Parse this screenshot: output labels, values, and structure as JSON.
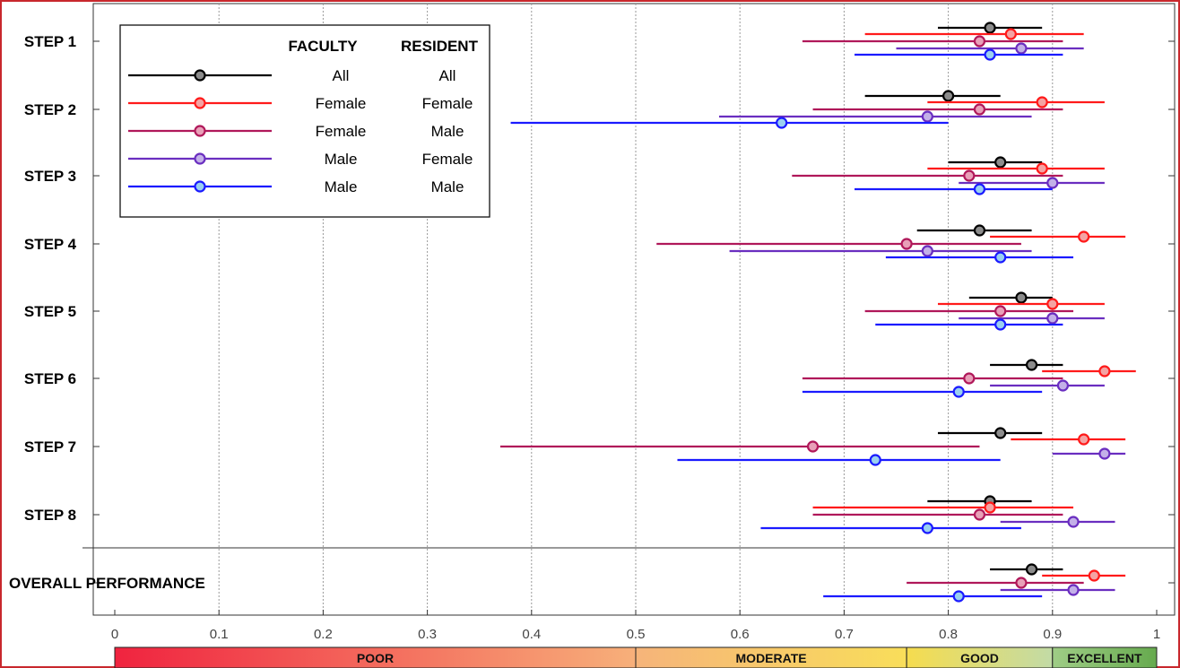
{
  "chart_data": {
    "type": "errorbar",
    "rows": [
      "STEP 1",
      "STEP 2",
      "STEP 3",
      "STEP 4",
      "STEP 5",
      "STEP 6",
      "STEP 7",
      "STEP 8",
      "OVERALL PERFORMANCE"
    ],
    "xlim": [
      0,
      1
    ],
    "xticks": [
      "0",
      "0.1",
      "0.2",
      "0.3",
      "0.4",
      "0.5",
      "0.6",
      "0.7",
      "0.8",
      "0.9",
      "1"
    ],
    "grid": true,
    "legend": {
      "position": "top-left",
      "headers": [
        "FACULTY",
        "RESIDENT"
      ],
      "entries": [
        {
          "faculty": "All",
          "resident": "All"
        },
        {
          "faculty": "Female",
          "resident": "Female"
        },
        {
          "faculty": "Female",
          "resident": "Male"
        },
        {
          "faculty": "Male",
          "resident": "Female"
        },
        {
          "faculty": "Male",
          "resident": "Male"
        }
      ]
    },
    "series": [
      {
        "faculty": "All",
        "resident": "All",
        "color": "#000000",
        "fill": "#8c8c8c",
        "points": [
          {
            "row": "STEP 1",
            "mean": 0.84,
            "low": 0.79,
            "high": 0.89
          },
          {
            "row": "STEP 2",
            "mean": 0.8,
            "low": 0.72,
            "high": 0.85
          },
          {
            "row": "STEP 3",
            "mean": 0.85,
            "low": 0.8,
            "high": 0.89
          },
          {
            "row": "STEP 4",
            "mean": 0.83,
            "low": 0.77,
            "high": 0.88
          },
          {
            "row": "STEP 5",
            "mean": 0.87,
            "low": 0.82,
            "high": 0.9
          },
          {
            "row": "STEP 6",
            "mean": 0.88,
            "low": 0.84,
            "high": 0.91
          },
          {
            "row": "STEP 7",
            "mean": 0.85,
            "low": 0.79,
            "high": 0.89
          },
          {
            "row": "STEP 8",
            "mean": 0.84,
            "low": 0.78,
            "high": 0.88
          },
          {
            "row": "OVERALL PERFORMANCE",
            "mean": 0.88,
            "low": 0.84,
            "high": 0.91
          }
        ]
      },
      {
        "faculty": "Female",
        "resident": "Female",
        "color": "#ff1a1a",
        "fill": "#f4a3a3",
        "points": [
          {
            "row": "STEP 1",
            "mean": 0.86,
            "low": 0.72,
            "high": 0.93
          },
          {
            "row": "STEP 2",
            "mean": 0.89,
            "low": 0.78,
            "high": 0.95
          },
          {
            "row": "STEP 3",
            "mean": 0.89,
            "low": 0.78,
            "high": 0.95
          },
          {
            "row": "STEP 4",
            "mean": 0.93,
            "low": 0.84,
            "high": 0.97
          },
          {
            "row": "STEP 5",
            "mean": 0.9,
            "low": 0.79,
            "high": 0.95
          },
          {
            "row": "STEP 6",
            "mean": 0.95,
            "low": 0.89,
            "high": 0.98
          },
          {
            "row": "STEP 7",
            "mean": 0.93,
            "low": 0.86,
            "high": 0.97
          },
          {
            "row": "STEP 8",
            "mean": 0.84,
            "low": 0.67,
            "high": 0.92
          },
          {
            "row": "OVERALL PERFORMANCE",
            "mean": 0.94,
            "low": 0.89,
            "high": 0.97
          }
        ]
      },
      {
        "faculty": "Female",
        "resident": "Male",
        "color": "#b0185a",
        "fill": "#e8a0b8",
        "points": [
          {
            "row": "STEP 1",
            "mean": 0.83,
            "low": 0.66,
            "high": 0.91
          },
          {
            "row": "STEP 2",
            "mean": 0.83,
            "low": 0.67,
            "high": 0.91
          },
          {
            "row": "STEP 3",
            "mean": 0.82,
            "low": 0.65,
            "high": 0.91
          },
          {
            "row": "STEP 4",
            "mean": 0.76,
            "low": 0.52,
            "high": 0.87
          },
          {
            "row": "STEP 5",
            "mean": 0.85,
            "low": 0.72,
            "high": 0.92
          },
          {
            "row": "STEP 6",
            "mean": 0.82,
            "low": 0.66,
            "high": 0.91
          },
          {
            "row": "STEP 7",
            "mean": 0.67,
            "low": 0.37,
            "high": 0.83
          },
          {
            "row": "STEP 8",
            "mean": 0.83,
            "low": 0.67,
            "high": 0.91
          },
          {
            "row": "OVERALL PERFORMANCE",
            "mean": 0.87,
            "low": 0.76,
            "high": 0.93
          }
        ]
      },
      {
        "faculty": "Male",
        "resident": "Female",
        "color": "#6a2ec0",
        "fill": "#c3b0e8",
        "points": [
          {
            "row": "STEP 1",
            "mean": 0.87,
            "low": 0.75,
            "high": 0.93
          },
          {
            "row": "STEP 2",
            "mean": 0.78,
            "low": 0.58,
            "high": 0.88
          },
          {
            "row": "STEP 3",
            "mean": 0.9,
            "low": 0.81,
            "high": 0.95
          },
          {
            "row": "STEP 4",
            "mean": 0.78,
            "low": 0.59,
            "high": 0.88
          },
          {
            "row": "STEP 5",
            "mean": 0.9,
            "low": 0.81,
            "high": 0.95
          },
          {
            "row": "STEP 6",
            "mean": 0.91,
            "low": 0.84,
            "high": 0.95
          },
          {
            "row": "STEP 7",
            "mean": 0.95,
            "low": 0.9,
            "high": 0.97
          },
          {
            "row": "STEP 8",
            "mean": 0.92,
            "low": 0.85,
            "high": 0.96
          },
          {
            "row": "OVERALL PERFORMANCE",
            "mean": 0.92,
            "low": 0.85,
            "high": 0.96
          }
        ]
      },
      {
        "faculty": "Male",
        "resident": "Male",
        "color": "#1a1aff",
        "fill": "#9ad0f0",
        "points": [
          {
            "row": "STEP 1",
            "mean": 0.84,
            "low": 0.71,
            "high": 0.91
          },
          {
            "row": "STEP 2",
            "mean": 0.64,
            "low": 0.38,
            "high": 0.8
          },
          {
            "row": "STEP 3",
            "mean": 0.83,
            "low": 0.71,
            "high": 0.9
          },
          {
            "row": "STEP 4",
            "mean": 0.85,
            "low": 0.74,
            "high": 0.92
          },
          {
            "row": "STEP 5",
            "mean": 0.85,
            "low": 0.73,
            "high": 0.91
          },
          {
            "row": "STEP 6",
            "mean": 0.81,
            "low": 0.66,
            "high": 0.89
          },
          {
            "row": "STEP 7",
            "mean": 0.73,
            "low": 0.54,
            "high": 0.85
          },
          {
            "row": "STEP 8",
            "mean": 0.78,
            "low": 0.62,
            "high": 0.87
          },
          {
            "row": "OVERALL PERFORMANCE",
            "mean": 0.81,
            "low": 0.68,
            "high": 0.89
          }
        ]
      }
    ],
    "bands": [
      {
        "label": "POOR",
        "from": 0,
        "to": 0.5,
        "colors": [
          "#f0233f",
          "#f7b07a"
        ]
      },
      {
        "label": "MODERATE",
        "from": 0.5,
        "to": 0.76,
        "colors": [
          "#f6b47a",
          "#f9de5a"
        ]
      },
      {
        "label": "GOOD",
        "from": 0.76,
        "to": 0.9,
        "colors": [
          "#f6dc4e",
          "#c2dba6"
        ]
      },
      {
        "label": "EXCELLENT",
        "from": 0.9,
        "to": 1.0,
        "colors": [
          "#9fcd86",
          "#66aa4e"
        ]
      }
    ]
  }
}
